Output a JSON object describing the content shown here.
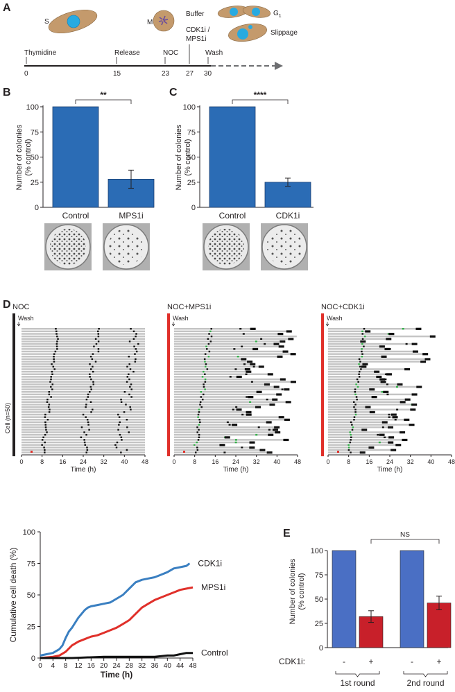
{
  "panels": [
    "A",
    "B",
    "C",
    "D",
    "E"
  ],
  "panel_a": {
    "cell_labels": {
      "s": "S",
      "m": "M",
      "g1": "G",
      "g1_sub": "1"
    },
    "outcomes": {
      "buffer": "Buffer",
      "drug_line1": "CDK1i /",
      "drug_line2": "MPS1i",
      "slippage": "Slippage"
    },
    "events": [
      {
        "label": "Thymidine",
        "time": "0"
      },
      {
        "label": "Release",
        "time": "15"
      },
      {
        "label": "NOC",
        "time": "23"
      },
      {
        "label": "",
        "time": "27"
      },
      {
        "label": "Wash",
        "time": "30"
      }
    ],
    "colors": {
      "cell": "#c49a6c",
      "nucleus": "#27aae1",
      "mitotic": "#6a4c9c"
    }
  },
  "bar_ylabel_line1": "Number of colonies",
  "bar_ylabel_line2": "(% control)",
  "chart_data": [
    {
      "id": "B",
      "type": "bar",
      "title": "",
      "categories": [
        "Control",
        "MPS1i"
      ],
      "values": [
        100,
        28
      ],
      "errors": [
        0,
        9
      ],
      "ylim": [
        0,
        100
      ],
      "yticks": [
        "0",
        "25",
        "50",
        "75",
        "100"
      ],
      "significance": "**",
      "color": "#2b6cb5"
    },
    {
      "id": "C",
      "type": "bar",
      "title": "",
      "categories": [
        "Control",
        "CDK1i"
      ],
      "values": [
        100,
        25
      ],
      "errors": [
        0,
        4
      ],
      "ylim": [
        0,
        100
      ],
      "yticks": [
        "0",
        "25",
        "50",
        "75",
        "100"
      ],
      "significance": "****",
      "color": "#2b6cb5"
    },
    {
      "id": "D-cumulative",
      "type": "line",
      "xlabel": "Time (h)",
      "ylabel": "Cumulative cell death (%)",
      "xlim": [
        0,
        48
      ],
      "ylim": [
        0,
        100
      ],
      "xticks": [
        "0",
        "4",
        "8",
        "12",
        "16",
        "20",
        "24",
        "28",
        "32",
        "36",
        "40",
        "44",
        "48"
      ],
      "yticks": [
        "0",
        "25",
        "50",
        "75",
        "100"
      ],
      "series": [
        {
          "name": "CDK1i",
          "color": "#3a7fc1",
          "x": [
            0,
            2,
            4,
            6,
            7,
            8,
            9,
            10,
            11,
            12,
            13,
            14,
            15,
            16,
            18,
            20,
            22,
            24,
            26,
            28,
            30,
            32,
            34,
            36,
            38,
            40,
            42,
            44,
            46,
            47
          ],
          "y": [
            2,
            3,
            4,
            7,
            10,
            16,
            21,
            24,
            28,
            32,
            35,
            38,
            40,
            41,
            42,
            43,
            44,
            47,
            50,
            55,
            60,
            62,
            63,
            64,
            66,
            68,
            71,
            72,
            73,
            75
          ]
        },
        {
          "name": "MPS1i",
          "color": "#e0302a",
          "x": [
            0,
            4,
            6,
            8,
            10,
            12,
            14,
            16,
            18,
            20,
            22,
            24,
            26,
            28,
            30,
            32,
            34,
            36,
            38,
            40,
            42,
            44,
            46,
            48
          ],
          "y": [
            0,
            1,
            2,
            5,
            10,
            13,
            15,
            17,
            18,
            20,
            22,
            24,
            27,
            30,
            35,
            40,
            43,
            46,
            48,
            50,
            52,
            54,
            55,
            56
          ]
        },
        {
          "name": "Control",
          "color": "#111111",
          "x": [
            0,
            10,
            20,
            28,
            32,
            36,
            40,
            42,
            44,
            46,
            48
          ],
          "y": [
            0,
            0,
            1,
            1,
            1,
            1,
            2,
            2,
            3,
            4,
            4
          ]
        }
      ]
    },
    {
      "id": "E",
      "type": "bar",
      "ylabel": "Number of colonies (% control)",
      "ylim": [
        0,
        100
      ],
      "yticks": [
        "0",
        "25",
        "50",
        "75",
        "100"
      ],
      "row_label": "CDK1i:",
      "categories": [
        "-",
        "+",
        "-",
        "+"
      ],
      "groups": [
        "1st round",
        "2nd round"
      ],
      "values": [
        100,
        32,
        100,
        46
      ],
      "errors": [
        0,
        6,
        0,
        7
      ],
      "colors": [
        "#4a6fc4",
        "#c8202a",
        "#4a6fc4",
        "#c8202a"
      ],
      "significance": "NS"
    }
  ],
  "panel_d": {
    "conditions": [
      {
        "title": "NOC",
        "bar_color": "#231f20"
      },
      {
        "title": "NOC+MPS1i",
        "bar_color": "#e0302a"
      },
      {
        "title": "NOC+CDK1i",
        "bar_color": "#e0302a"
      }
    ],
    "wash_label": "Wash",
    "ylabel": "Cell (n=50)",
    "xlabel": "Time (h)",
    "xticks": [
      "0",
      "8",
      "16",
      "24",
      "32",
      "40",
      "48"
    ],
    "n_cells": 50,
    "colors": {
      "track": "#c4c4c4",
      "mitosis": "#111111",
      "slippage": "#35b14a",
      "death_mark": "#e0302a"
    }
  }
}
